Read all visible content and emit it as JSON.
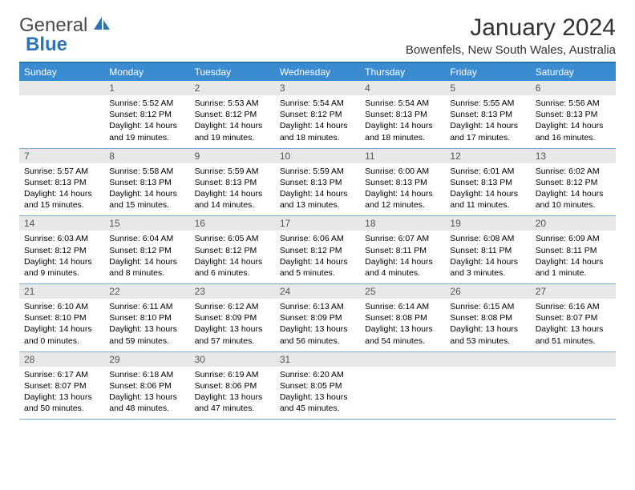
{
  "brand": {
    "part1": "General",
    "part2": "Blue"
  },
  "title": "January 2024",
  "location": "Bowenfels, New South Wales, Australia",
  "colors": {
    "header_bg": "#3b8bd0",
    "header_text": "#ffffff",
    "border": "#7fa8cc",
    "daynum_bg": "#e8e8e8",
    "daynum_text": "#555555",
    "body_text": "#000000",
    "brand_gray": "#4a4a4a",
    "brand_blue": "#2e74b5"
  },
  "weekdays": [
    "Sunday",
    "Monday",
    "Tuesday",
    "Wednesday",
    "Thursday",
    "Friday",
    "Saturday"
  ],
  "first_weekday_index": 1,
  "days": [
    {
      "n": "1",
      "sunrise": "Sunrise: 5:52 AM",
      "sunset": "Sunset: 8:12 PM",
      "daylight": "Daylight: 14 hours and 19 minutes."
    },
    {
      "n": "2",
      "sunrise": "Sunrise: 5:53 AM",
      "sunset": "Sunset: 8:12 PM",
      "daylight": "Daylight: 14 hours and 19 minutes."
    },
    {
      "n": "3",
      "sunrise": "Sunrise: 5:54 AM",
      "sunset": "Sunset: 8:12 PM",
      "daylight": "Daylight: 14 hours and 18 minutes."
    },
    {
      "n": "4",
      "sunrise": "Sunrise: 5:54 AM",
      "sunset": "Sunset: 8:13 PM",
      "daylight": "Daylight: 14 hours and 18 minutes."
    },
    {
      "n": "5",
      "sunrise": "Sunrise: 5:55 AM",
      "sunset": "Sunset: 8:13 PM",
      "daylight": "Daylight: 14 hours and 17 minutes."
    },
    {
      "n": "6",
      "sunrise": "Sunrise: 5:56 AM",
      "sunset": "Sunset: 8:13 PM",
      "daylight": "Daylight: 14 hours and 16 minutes."
    },
    {
      "n": "7",
      "sunrise": "Sunrise: 5:57 AM",
      "sunset": "Sunset: 8:13 PM",
      "daylight": "Daylight: 14 hours and 15 minutes."
    },
    {
      "n": "8",
      "sunrise": "Sunrise: 5:58 AM",
      "sunset": "Sunset: 8:13 PM",
      "daylight": "Daylight: 14 hours and 15 minutes."
    },
    {
      "n": "9",
      "sunrise": "Sunrise: 5:59 AM",
      "sunset": "Sunset: 8:13 PM",
      "daylight": "Daylight: 14 hours and 14 minutes."
    },
    {
      "n": "10",
      "sunrise": "Sunrise: 5:59 AM",
      "sunset": "Sunset: 8:13 PM",
      "daylight": "Daylight: 14 hours and 13 minutes."
    },
    {
      "n": "11",
      "sunrise": "Sunrise: 6:00 AM",
      "sunset": "Sunset: 8:13 PM",
      "daylight": "Daylight: 14 hours and 12 minutes."
    },
    {
      "n": "12",
      "sunrise": "Sunrise: 6:01 AM",
      "sunset": "Sunset: 8:13 PM",
      "daylight": "Daylight: 14 hours and 11 minutes."
    },
    {
      "n": "13",
      "sunrise": "Sunrise: 6:02 AM",
      "sunset": "Sunset: 8:12 PM",
      "daylight": "Daylight: 14 hours and 10 minutes."
    },
    {
      "n": "14",
      "sunrise": "Sunrise: 6:03 AM",
      "sunset": "Sunset: 8:12 PM",
      "daylight": "Daylight: 14 hours and 9 minutes."
    },
    {
      "n": "15",
      "sunrise": "Sunrise: 6:04 AM",
      "sunset": "Sunset: 8:12 PM",
      "daylight": "Daylight: 14 hours and 8 minutes."
    },
    {
      "n": "16",
      "sunrise": "Sunrise: 6:05 AM",
      "sunset": "Sunset: 8:12 PM",
      "daylight": "Daylight: 14 hours and 6 minutes."
    },
    {
      "n": "17",
      "sunrise": "Sunrise: 6:06 AM",
      "sunset": "Sunset: 8:12 PM",
      "daylight": "Daylight: 14 hours and 5 minutes."
    },
    {
      "n": "18",
      "sunrise": "Sunrise: 6:07 AM",
      "sunset": "Sunset: 8:11 PM",
      "daylight": "Daylight: 14 hours and 4 minutes."
    },
    {
      "n": "19",
      "sunrise": "Sunrise: 6:08 AM",
      "sunset": "Sunset: 8:11 PM",
      "daylight": "Daylight: 14 hours and 3 minutes."
    },
    {
      "n": "20",
      "sunrise": "Sunrise: 6:09 AM",
      "sunset": "Sunset: 8:11 PM",
      "daylight": "Daylight: 14 hours and 1 minute."
    },
    {
      "n": "21",
      "sunrise": "Sunrise: 6:10 AM",
      "sunset": "Sunset: 8:10 PM",
      "daylight": "Daylight: 14 hours and 0 minutes."
    },
    {
      "n": "22",
      "sunrise": "Sunrise: 6:11 AM",
      "sunset": "Sunset: 8:10 PM",
      "daylight": "Daylight: 13 hours and 59 minutes."
    },
    {
      "n": "23",
      "sunrise": "Sunrise: 6:12 AM",
      "sunset": "Sunset: 8:09 PM",
      "daylight": "Daylight: 13 hours and 57 minutes."
    },
    {
      "n": "24",
      "sunrise": "Sunrise: 6:13 AM",
      "sunset": "Sunset: 8:09 PM",
      "daylight": "Daylight: 13 hours and 56 minutes."
    },
    {
      "n": "25",
      "sunrise": "Sunrise: 6:14 AM",
      "sunset": "Sunset: 8:08 PM",
      "daylight": "Daylight: 13 hours and 54 minutes."
    },
    {
      "n": "26",
      "sunrise": "Sunrise: 6:15 AM",
      "sunset": "Sunset: 8:08 PM",
      "daylight": "Daylight: 13 hours and 53 minutes."
    },
    {
      "n": "27",
      "sunrise": "Sunrise: 6:16 AM",
      "sunset": "Sunset: 8:07 PM",
      "daylight": "Daylight: 13 hours and 51 minutes."
    },
    {
      "n": "28",
      "sunrise": "Sunrise: 6:17 AM",
      "sunset": "Sunset: 8:07 PM",
      "daylight": "Daylight: 13 hours and 50 minutes."
    },
    {
      "n": "29",
      "sunrise": "Sunrise: 6:18 AM",
      "sunset": "Sunset: 8:06 PM",
      "daylight": "Daylight: 13 hours and 48 minutes."
    },
    {
      "n": "30",
      "sunrise": "Sunrise: 6:19 AM",
      "sunset": "Sunset: 8:06 PM",
      "daylight": "Daylight: 13 hours and 47 minutes."
    },
    {
      "n": "31",
      "sunrise": "Sunrise: 6:20 AM",
      "sunset": "Sunset: 8:05 PM",
      "daylight": "Daylight: 13 hours and 45 minutes."
    }
  ]
}
